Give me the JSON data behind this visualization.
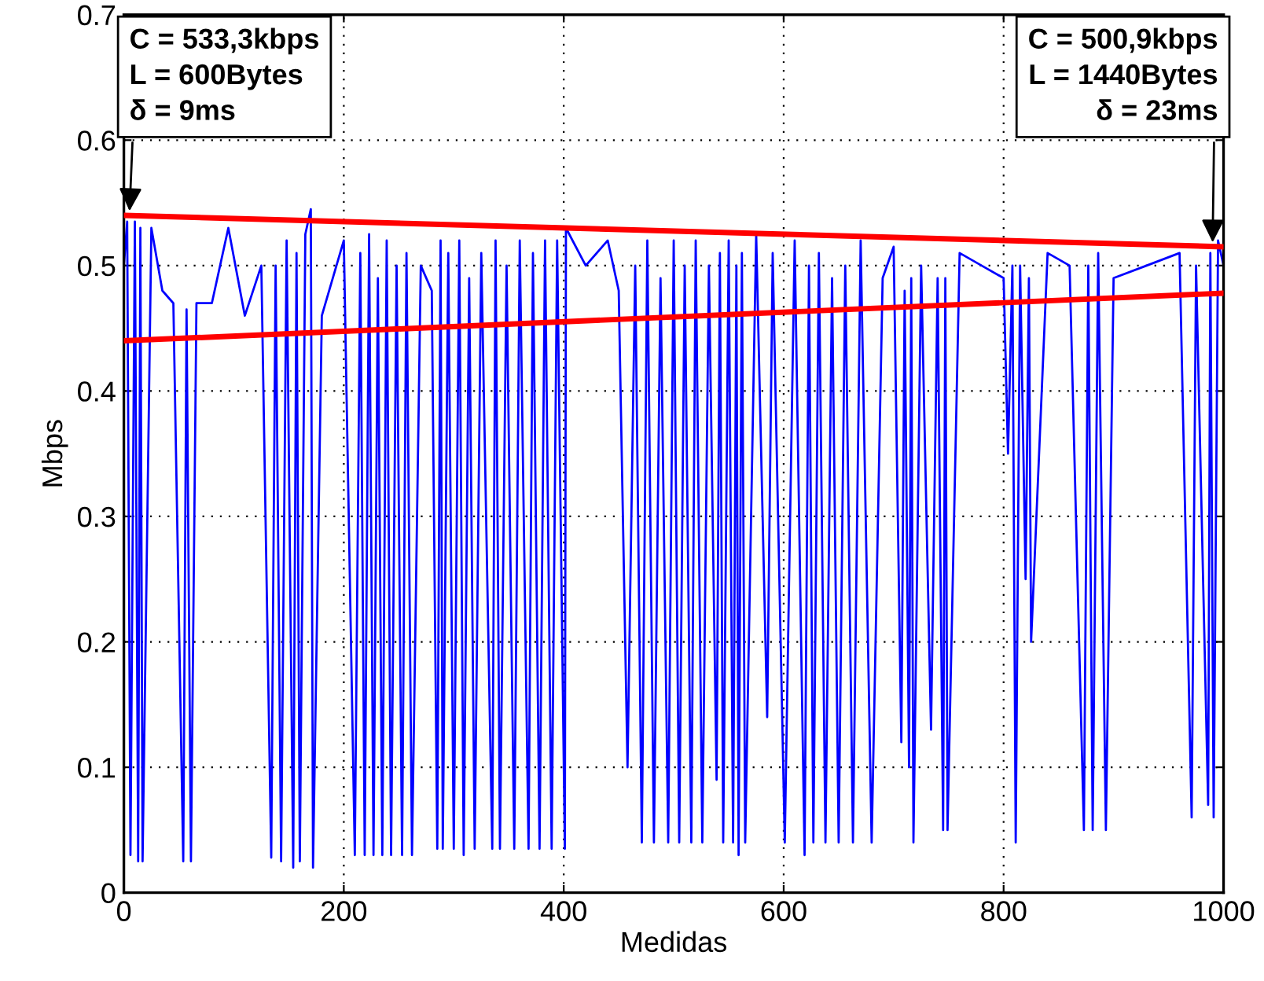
{
  "chart_data": {
    "type": "line",
    "xlabel": "Medidas",
    "ylabel": "Mbps",
    "xlim": [
      0,
      1000
    ],
    "xticks": [
      0,
      200,
      400,
      600,
      800,
      1000
    ],
    "ylim": [
      0,
      0.7
    ],
    "yticks": [
      0,
      0.1,
      0.2,
      0.3,
      0.4,
      0.5,
      0.6,
      0.7
    ],
    "grid": true,
    "line_style": "solid",
    "marker": "none",
    "series": [
      {
        "color": "#0000ff",
        "x": [
          0,
          3,
          6,
          10,
          13,
          15,
          17,
          25,
          35,
          45,
          54,
          57,
          61,
          66,
          80,
          95,
          110,
          125,
          134,
          138,
          143,
          148,
          154,
          157,
          160,
          165,
          170,
          172,
          180,
          200,
          210,
          215,
          219,
          223,
          227,
          231,
          235,
          239,
          243,
          248,
          253,
          257,
          262,
          270,
          280,
          285,
          288,
          290,
          295,
          300,
          305,
          309,
          314,
          319,
          325,
          335,
          338,
          342,
          348,
          355,
          360,
          368,
          372,
          378,
          383,
          389,
          394,
          401,
          402,
          420,
          440,
          450,
          458,
          465,
          471,
          476,
          482,
          488,
          495,
          500,
          505,
          510,
          516,
          520,
          526,
          532,
          539,
          542,
          545,
          550,
          554,
          557,
          559,
          562,
          565,
          575,
          585,
          590,
          601,
          610,
          619,
          623,
          627,
          632,
          638,
          644,
          650,
          656,
          663,
          670,
          680,
          690,
          700,
          707,
          710,
          714,
          716,
          718,
          725,
          734,
          740,
          745,
          747,
          749,
          760,
          780,
          800,
          804,
          808,
          811,
          815,
          820,
          823,
          825,
          840,
          860,
          873,
          877,
          881,
          886,
          893,
          900,
          930,
          960,
          971,
          975,
          986,
          988,
          991,
          995,
          1000
        ],
        "values": [
          0.5,
          0.535,
          0.03,
          0.535,
          0.025,
          0.53,
          0.025,
          0.53,
          0.48,
          0.47,
          0.025,
          0.465,
          0.025,
          0.47,
          0.47,
          0.53,
          0.46,
          0.5,
          0.028,
          0.5,
          0.025,
          0.52,
          0.02,
          0.51,
          0.025,
          0.525,
          0.545,
          0.02,
          0.46,
          0.52,
          0.03,
          0.51,
          0.03,
          0.525,
          0.03,
          0.49,
          0.03,
          0.52,
          0.03,
          0.5,
          0.03,
          0.51,
          0.03,
          0.5,
          0.48,
          0.035,
          0.52,
          0.035,
          0.51,
          0.035,
          0.52,
          0.03,
          0.49,
          0.035,
          0.51,
          0.035,
          0.52,
          0.035,
          0.5,
          0.035,
          0.52,
          0.035,
          0.51,
          0.035,
          0.52,
          0.035,
          0.52,
          0.035,
          0.53,
          0.5,
          0.52,
          0.48,
          0.1,
          0.5,
          0.04,
          0.52,
          0.04,
          0.49,
          0.04,
          0.52,
          0.04,
          0.5,
          0.04,
          0.52,
          0.04,
          0.5,
          0.09,
          0.51,
          0.04,
          0.52,
          0.04,
          0.5,
          0.03,
          0.51,
          0.04,
          0.525,
          0.14,
          0.51,
          0.04,
          0.52,
          0.03,
          0.5,
          0.04,
          0.51,
          0.04,
          0.49,
          0.04,
          0.5,
          0.04,
          0.52,
          0.04,
          0.49,
          0.515,
          0.12,
          0.48,
          0.1,
          0.49,
          0.04,
          0.5,
          0.13,
          0.49,
          0.05,
          0.49,
          0.05,
          0.51,
          0.5,
          0.49,
          0.35,
          0.5,
          0.04,
          0.5,
          0.25,
          0.49,
          0.2,
          0.51,
          0.5,
          0.05,
          0.5,
          0.05,
          0.51,
          0.05,
          0.49,
          0.5,
          0.51,
          0.06,
          0.5,
          0.07,
          0.51,
          0.06,
          0.52,
          0.5
        ]
      },
      {
        "color": "#ff0000",
        "x": [
          0,
          1000
        ],
        "values": [
          0.54,
          0.515
        ]
      },
      {
        "color": "#ff0000",
        "x": [
          0,
          1000
        ],
        "values": [
          0.44,
          0.478
        ]
      }
    ],
    "annotations": [
      {
        "text": "C = 533,3kbps\nL = 600Bytes\nδ = 9ms",
        "x": 5,
        "y": 0.54
      },
      {
        "text": "C = 500,9kbps\nL = 1440Bytes\nδ = 23ms",
        "x": 990,
        "y": 0.515
      }
    ]
  }
}
